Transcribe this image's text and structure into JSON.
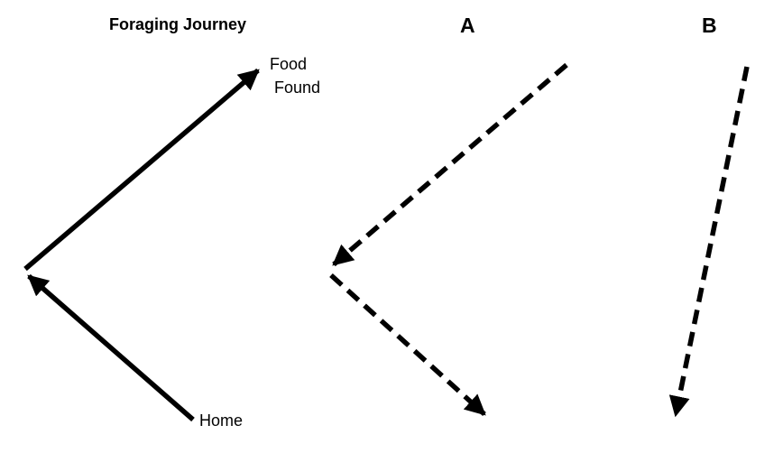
{
  "title": "Foraging Journey",
  "panels": {
    "a_label": "A",
    "b_label": "B"
  },
  "labels": {
    "food_line1": "Food",
    "food_line2": "Found",
    "home": "Home"
  },
  "colors": {
    "stroke": "#000000",
    "background": "#ffffff"
  }
}
